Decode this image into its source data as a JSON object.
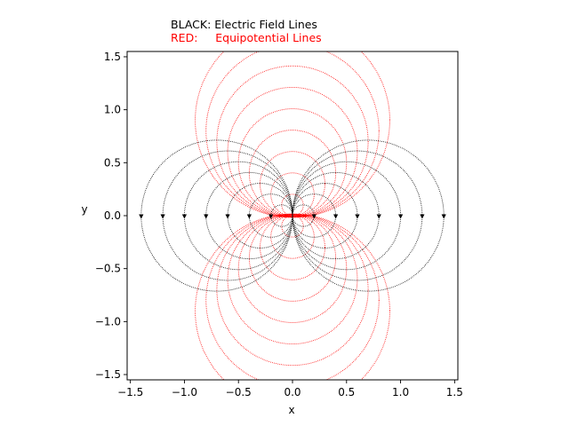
{
  "legend_text": {
    "black_line": "BLACK: Electric Field Lines",
    "red_line": "RED:     Equipotential Lines"
  },
  "colors": {
    "field_lines": "#000000",
    "equipotential_lines": "#ff0000"
  },
  "chart_data": {
    "type": "line",
    "title": "",
    "xlabel": "x",
    "ylabel": "y",
    "xlim": [
      -1.53,
      1.53
    ],
    "ylim": [
      -1.55,
      1.55
    ],
    "xticks": [
      -1.5,
      -1.0,
      -0.5,
      0.0,
      0.5,
      1.0,
      1.5
    ],
    "xtick_labels": [
      "−1.5",
      "−1.0",
      "−0.5",
      "0.0",
      "0.5",
      "1.0",
      "1.5"
    ],
    "yticks": [
      -1.5,
      -1.0,
      -0.5,
      0.0,
      0.5,
      1.0,
      1.5
    ],
    "ytick_labels": [
      "−1.5",
      "−1.0",
      "−0.5",
      "0.0",
      "0.5",
      "1.0",
      "1.5"
    ],
    "grid": false,
    "aspect": "equal",
    "line_style": "dotted",
    "series": [
      {
        "kind": "field_lines",
        "color": "#000000",
        "description_shape": "dipole field loops through origin, symmetric about both axes",
        "loop_x_intercepts": [
          0.2,
          0.4,
          0.6,
          0.8,
          1.0,
          1.2,
          1.4
        ],
        "arrow_points_y": [
          0,
          0,
          0,
          0,
          0,
          0,
          0,
          0,
          0,
          0,
          0,
          0,
          0,
          0
        ],
        "arrow_points_x": [
          -1.4,
          -1.2,
          -1.0,
          -0.8,
          -0.6,
          -0.4,
          -0.2,
          0.2,
          0.4,
          0.6,
          0.8,
          1.0,
          1.2,
          1.4
        ],
        "arrow_direction": "down"
      },
      {
        "kind": "equipotential_lines",
        "color": "#ff0000",
        "description_shape": "circles tangent to x-axis at origin, above and below",
        "circle_diameters": [
          0.2,
          0.4,
          0.6,
          0.8,
          1.0,
          1.2,
          1.4,
          1.6,
          1.8
        ],
        "field_arrows_x": [
          -0.1,
          -0.05,
          0.05,
          0.1
        ],
        "field_arrows_direction": "toward origin"
      }
    ]
  }
}
